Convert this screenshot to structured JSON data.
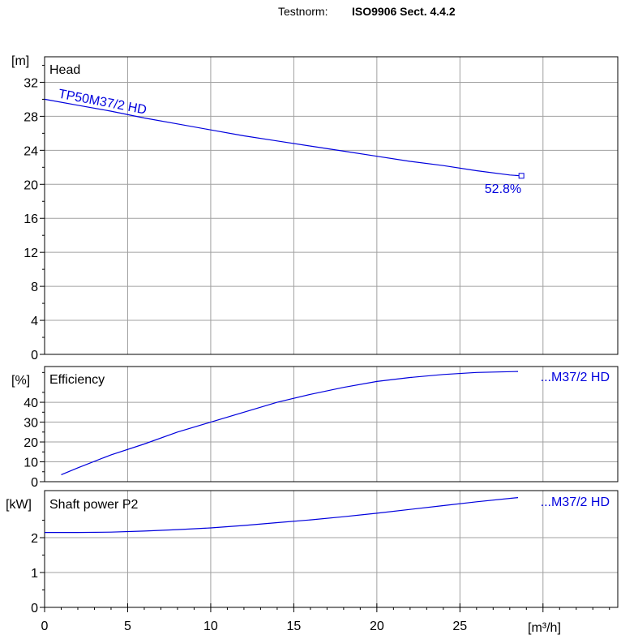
{
  "header": {
    "testnorm_label": "Testnorm:",
    "testnorm_value": "ISO9906 Sect. 4.4.2"
  },
  "colors": {
    "curve": "#0000dd",
    "grid": "#a0a0a0",
    "frame": "#000000"
  },
  "chart_data": [
    {
      "type": "line",
      "title": "Head",
      "ylabel": "[m]",
      "xlabel": "[m³/h]",
      "xlim": [
        0,
        34.5
      ],
      "ylim": [
        0,
        35
      ],
      "grid": true,
      "yticks": [
        0,
        4,
        8,
        12,
        16,
        20,
        24,
        28,
        32
      ],
      "series": [
        {
          "name": "TP50M37/2 HD",
          "x": [
            0,
            2,
            4,
            6,
            8,
            10,
            12,
            14,
            16,
            18,
            20,
            22,
            24,
            26,
            28,
            28.7
          ],
          "values": [
            30.0,
            29.3,
            28.6,
            27.8,
            27.1,
            26.4,
            25.7,
            25.1,
            24.5,
            23.9,
            23.3,
            22.7,
            22.2,
            21.6,
            21.1,
            21.0
          ]
        }
      ],
      "annotations": [
        {
          "text": "52.8%",
          "x": 28.7,
          "y": 21.0
        }
      ]
    },
    {
      "type": "line",
      "title": "Efficiency",
      "ylabel": "[%]",
      "xlim": [
        0,
        34.5
      ],
      "ylim": [
        0,
        58
      ],
      "grid": true,
      "yticks": [
        0,
        10,
        20,
        30,
        40
      ],
      "series": [
        {
          "name": "...M37/2 HD",
          "x": [
            1,
            2,
            4,
            6,
            8,
            10,
            12,
            14,
            16,
            18,
            20,
            22,
            24,
            26,
            28.5
          ],
          "values": [
            3.5,
            7,
            13.5,
            19,
            25,
            30,
            35,
            40,
            44,
            47.5,
            50.5,
            52.5,
            54,
            55,
            55.5
          ]
        }
      ]
    },
    {
      "type": "line",
      "title": "Shaft power P2",
      "ylabel": "[kW]",
      "xlabel": "[m³/h]",
      "xlim": [
        0,
        34.5
      ],
      "ylim": [
        0,
        3.35
      ],
      "grid": true,
      "yticks": [
        0,
        1,
        2
      ],
      "xticks": [
        0,
        5,
        10,
        15,
        20,
        25
      ],
      "series": [
        {
          "name": "...M37/2 HD",
          "x": [
            0,
            2,
            4,
            6,
            8,
            10,
            12,
            14,
            16,
            18,
            20,
            22,
            24,
            26,
            28.5
          ],
          "values": [
            2.15,
            2.15,
            2.16,
            2.19,
            2.23,
            2.28,
            2.35,
            2.43,
            2.51,
            2.6,
            2.7,
            2.81,
            2.92,
            3.03,
            3.15
          ]
        }
      ]
    }
  ]
}
